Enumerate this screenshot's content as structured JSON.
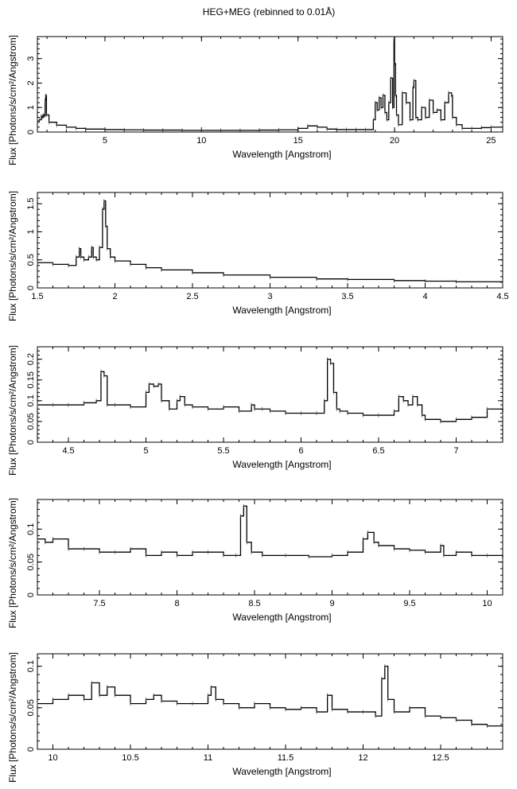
{
  "figure": {
    "title": "HEG+MEG (rebinned to 0.01Å)"
  },
  "chart_data": [
    {
      "type": "line",
      "xlabel": "Wavelength [Angstrom]",
      "ylabel": "Flux [Photons/s/cm²/Angstrom]",
      "xlim": [
        1.5,
        25.6
      ],
      "ylim": [
        0,
        3.9
      ],
      "xticks": [
        5,
        10,
        15,
        20,
        25
      ],
      "xtick_labels": [
        "5",
        "10",
        "15",
        "20",
        "25"
      ],
      "yticks": [
        0,
        1,
        2,
        3
      ],
      "ytick_labels": [
        "0",
        "1",
        "2",
        "3"
      ],
      "grid": false,
      "series": [
        {
          "x": [
            1.5,
            1.6,
            1.7,
            1.75,
            1.8,
            1.85,
            1.9,
            1.93,
            1.97,
            2.1,
            2.5,
            3.0,
            3.5,
            4.0,
            5.0,
            6.0,
            7.0,
            8.0,
            9.0,
            10.0,
            11.0,
            12.0,
            13.0,
            14.0,
            15.0,
            15.5,
            16.0,
            16.5,
            17.0,
            17.5,
            18.0,
            18.5,
            18.9,
            19.0,
            19.1,
            19.2,
            19.3,
            19.4,
            19.5,
            19.6,
            19.7,
            19.8,
            19.9,
            19.97,
            20.0,
            20.05,
            20.1,
            20.2,
            20.4,
            20.6,
            20.8,
            20.95,
            21.0,
            21.1,
            21.2,
            21.4,
            21.6,
            21.8,
            22.0,
            22.2,
            22.4,
            22.6,
            22.8,
            22.95,
            23.0,
            23.2,
            23.5,
            24.0,
            24.5,
            25.0,
            25.6
          ],
          "y": [
            0.45,
            0.5,
            0.65,
            0.6,
            0.7,
            0.65,
            1.3,
            1.5,
            0.7,
            0.4,
            0.28,
            0.2,
            0.15,
            0.12,
            0.1,
            0.09,
            0.08,
            0.08,
            0.07,
            0.07,
            0.07,
            0.07,
            0.08,
            0.09,
            0.15,
            0.25,
            0.2,
            0.12,
            0.1,
            0.1,
            0.1,
            0.1,
            0.5,
            1.2,
            0.9,
            1.4,
            1.0,
            1.5,
            0.8,
            0.5,
            1.2,
            2.2,
            1.0,
            3.8,
            2.8,
            1.5,
            0.7,
            0.3,
            1.6,
            1.2,
            0.5,
            1.8,
            2.1,
            0.6,
            0.5,
            1.0,
            0.6,
            1.3,
            0.8,
            0.9,
            0.5,
            1.2,
            1.6,
            1.5,
            0.6,
            0.3,
            0.15,
            0.15,
            0.18,
            0.2,
            0.25
          ]
        }
      ]
    },
    {
      "type": "line",
      "xlabel": "Wavelength [Angstrom]",
      "ylabel": "Flux [Photons/s/cm²/Angstrom]",
      "xlim": [
        1.5,
        4.5
      ],
      "ylim": [
        0,
        1.7
      ],
      "xticks": [
        1.5,
        2,
        2.5,
        3,
        3.5,
        4,
        4.5
      ],
      "xtick_labels": [
        "1.5",
        "2",
        "2.5",
        "3",
        "3.5",
        "4",
        "4.5"
      ],
      "yticks": [
        0,
        0.5,
        1,
        1.5
      ],
      "ytick_labels": [
        "0",
        "0.5",
        "1",
        "1.5"
      ],
      "grid": false,
      "series": [
        {
          "x": [
            1.5,
            1.6,
            1.7,
            1.75,
            1.77,
            1.78,
            1.8,
            1.83,
            1.85,
            1.86,
            1.88,
            1.9,
            1.92,
            1.93,
            1.94,
            1.95,
            1.97,
            2.0,
            2.1,
            2.2,
            2.3,
            2.5,
            2.7,
            3.0,
            3.3,
            3.5,
            3.8,
            4.0,
            4.2,
            4.5
          ],
          "y": [
            0.45,
            0.42,
            0.4,
            0.55,
            0.7,
            0.55,
            0.5,
            0.55,
            0.72,
            0.55,
            0.5,
            0.72,
            1.4,
            1.55,
            1.1,
            0.7,
            0.55,
            0.48,
            0.42,
            0.36,
            0.32,
            0.27,
            0.23,
            0.19,
            0.16,
            0.15,
            0.13,
            0.12,
            0.11,
            0.1
          ]
        }
      ]
    },
    {
      "type": "line",
      "xlabel": "Wavelength [Angstrom]",
      "ylabel": "Flux [Photons/s/cm²/Angstrom]",
      "xlim": [
        4.3,
        7.3
      ],
      "ylim": [
        0,
        0.23
      ],
      "xticks": [
        4.5,
        5,
        5.5,
        6,
        6.5,
        7
      ],
      "xtick_labels": [
        "4.5",
        "5",
        "5.5",
        "6",
        "6.5",
        "7"
      ],
      "yticks": [
        0,
        0.05,
        0.1,
        0.15,
        0.2
      ],
      "ytick_labels": [
        "0",
        "0.05",
        "0.1",
        "0.15",
        "0.2"
      ],
      "grid": false,
      "series": [
        {
          "x": [
            4.3,
            4.4,
            4.5,
            4.6,
            4.68,
            4.71,
            4.73,
            4.75,
            4.8,
            4.9,
            5.0,
            5.02,
            5.05,
            5.08,
            5.1,
            5.15,
            5.2,
            5.22,
            5.25,
            5.3,
            5.4,
            5.5,
            5.6,
            5.68,
            5.7,
            5.75,
            5.8,
            5.9,
            6.0,
            6.1,
            6.15,
            6.17,
            6.19,
            6.21,
            6.23,
            6.25,
            6.3,
            6.4,
            6.5,
            6.6,
            6.63,
            6.66,
            6.69,
            6.72,
            6.75,
            6.78,
            6.8,
            6.9,
            7.0,
            7.1,
            7.2,
            7.3
          ],
          "y": [
            0.09,
            0.09,
            0.09,
            0.095,
            0.1,
            0.17,
            0.16,
            0.09,
            0.09,
            0.085,
            0.12,
            0.14,
            0.135,
            0.14,
            0.1,
            0.08,
            0.1,
            0.11,
            0.09,
            0.085,
            0.08,
            0.085,
            0.075,
            0.09,
            0.08,
            0.08,
            0.075,
            0.07,
            0.07,
            0.07,
            0.1,
            0.2,
            0.19,
            0.12,
            0.08,
            0.075,
            0.07,
            0.065,
            0.065,
            0.075,
            0.11,
            0.1,
            0.09,
            0.11,
            0.09,
            0.065,
            0.055,
            0.05,
            0.055,
            0.06,
            0.08,
            0.07
          ]
        }
      ]
    },
    {
      "type": "line",
      "xlabel": "Wavelength [Angstrom]",
      "ylabel": "Flux [Photons/s/cm²/Angstrom]",
      "xlim": [
        7.1,
        10.1
      ],
      "ylim": [
        0,
        0.145
      ],
      "xticks": [
        7.5,
        8,
        8.5,
        9,
        9.5,
        10
      ],
      "xtick_labels": [
        "7.5",
        "8",
        "8.5",
        "9",
        "9.5",
        "10"
      ],
      "yticks": [
        0,
        0.05,
        0.1
      ],
      "ytick_labels": [
        "0",
        "0.05",
        "0.1"
      ],
      "grid": false,
      "series": [
        {
          "x": [
            7.1,
            7.15,
            7.2,
            7.3,
            7.4,
            7.5,
            7.6,
            7.7,
            7.8,
            7.9,
            8.0,
            8.1,
            8.2,
            8.3,
            8.38,
            8.41,
            8.43,
            8.45,
            8.48,
            8.55,
            8.7,
            8.85,
            9.0,
            9.1,
            9.2,
            9.23,
            9.27,
            9.3,
            9.4,
            9.5,
            9.6,
            9.7,
            9.72,
            9.8,
            9.9,
            10.0,
            10.1
          ],
          "y": [
            0.085,
            0.08,
            0.085,
            0.07,
            0.07,
            0.065,
            0.065,
            0.07,
            0.06,
            0.065,
            0.06,
            0.065,
            0.065,
            0.06,
            0.06,
            0.12,
            0.135,
            0.08,
            0.065,
            0.06,
            0.06,
            0.058,
            0.06,
            0.065,
            0.085,
            0.095,
            0.08,
            0.075,
            0.07,
            0.068,
            0.065,
            0.075,
            0.06,
            0.065,
            0.06,
            0.06,
            0.055
          ]
        }
      ]
    },
    {
      "type": "line",
      "xlabel": "Wavelength [Angstrom]",
      "ylabel": "Flux [Photons/s/cm²/Angstrom]",
      "xlim": [
        9.9,
        12.9
      ],
      "ylim": [
        0,
        0.115
      ],
      "xticks": [
        10,
        10.5,
        11,
        11.5,
        12,
        12.5
      ],
      "xtick_labels": [
        "10",
        "10.5",
        "11",
        "11.5",
        "12",
        "12.5"
      ],
      "yticks": [
        0,
        0.05,
        0.1
      ],
      "ytick_labels": [
        "0",
        "0.05",
        "0.1"
      ],
      "grid": false,
      "series": [
        {
          "x": [
            9.9,
            10.0,
            10.1,
            10.2,
            10.25,
            10.3,
            10.35,
            10.4,
            10.5,
            10.6,
            10.65,
            10.7,
            10.8,
            10.9,
            11.0,
            11.02,
            11.05,
            11.1,
            11.2,
            11.3,
            11.4,
            11.5,
            11.6,
            11.7,
            11.77,
            11.8,
            11.9,
            12.0,
            12.08,
            12.12,
            12.14,
            12.16,
            12.2,
            12.3,
            12.4,
            12.5,
            12.6,
            12.7,
            12.8,
            12.9
          ],
          "y": [
            0.055,
            0.06,
            0.065,
            0.06,
            0.08,
            0.065,
            0.075,
            0.065,
            0.055,
            0.06,
            0.065,
            0.058,
            0.055,
            0.055,
            0.065,
            0.075,
            0.06,
            0.055,
            0.05,
            0.055,
            0.05,
            0.048,
            0.05,
            0.045,
            0.065,
            0.048,
            0.045,
            0.045,
            0.04,
            0.085,
            0.1,
            0.06,
            0.045,
            0.05,
            0.04,
            0.038,
            0.035,
            0.03,
            0.028,
            0.03
          ]
        }
      ]
    }
  ]
}
